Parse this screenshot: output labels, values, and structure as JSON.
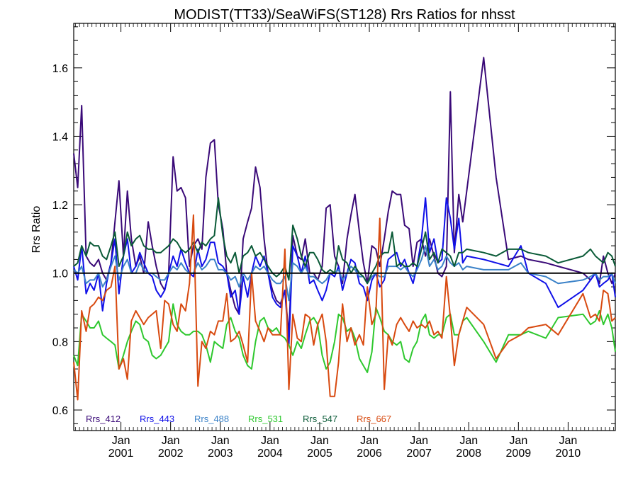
{
  "chart_data": {
    "type": "line",
    "title": "MODIST(TT33)/SeaWiFS(ST128)  Rrs Ratios for nhsst",
    "xlabel": "",
    "ylabel": "Rrs Ratio",
    "ylim": [
      0.54,
      1.73
    ],
    "xlim": [
      2000.05,
      2010.95
    ],
    "grid": false,
    "legend_position": "bottom-left",
    "reference_line": 1.0,
    "yticks": [
      0.6,
      0.8,
      1.0,
      1.2,
      1.4,
      1.6
    ],
    "yticklabels": [
      "0.6",
      "0.8",
      "1.0",
      "1.2",
      "1.4",
      "1.6"
    ],
    "xticks": [
      2001.0,
      2002.0,
      2003.0,
      2004.0,
      2005.0,
      2006.0,
      2007.0,
      2008.0,
      2009.0,
      2010.0
    ],
    "xticklabels_top": [
      "Jan",
      "Jan",
      "Jan",
      "Jan",
      "Jan",
      "Jan",
      "Jan",
      "Jan",
      "Jan",
      "Jan"
    ],
    "xticklabels_bottom": [
      "2001",
      "2002",
      "2003",
      "2004",
      "2005",
      "2006",
      "2007",
      "2008",
      "2009",
      "2010"
    ],
    "x": [
      2000.05,
      2000.13,
      2000.21,
      2000.3,
      2000.38,
      2000.46,
      2000.55,
      2000.63,
      2000.71,
      2000.8,
      2000.88,
      2000.96,
      2001.05,
      2001.13,
      2001.21,
      2001.3,
      2001.38,
      2001.46,
      2001.55,
      2001.63,
      2001.71,
      2001.8,
      2001.88,
      2001.96,
      2002.05,
      2002.13,
      2002.21,
      2002.3,
      2002.38,
      2002.46,
      2002.55,
      2002.63,
      2002.71,
      2002.8,
      2002.88,
      2002.96,
      2003.05,
      2003.13,
      2003.21,
      2003.3,
      2003.38,
      2003.46,
      2003.55,
      2003.63,
      2003.71,
      2003.8,
      2003.88,
      2003.96,
      2004.05,
      2004.13,
      2004.21,
      2004.3,
      2004.38,
      2004.46,
      2004.55,
      2004.63,
      2004.71,
      2004.8,
      2004.88,
      2004.96,
      2005.05,
      2005.13,
      2005.21,
      2005.3,
      2005.38,
      2005.46,
      2005.55,
      2005.63,
      2005.71,
      2005.8,
      2005.88,
      2005.96,
      2006.05,
      2006.13,
      2006.21,
      2006.3,
      2006.38,
      2006.46,
      2006.55,
      2006.63,
      2006.71,
      2006.8,
      2006.88,
      2006.96,
      2007.05,
      2007.13,
      2007.21,
      2007.3,
      2007.38,
      2007.46,
      2007.55,
      2007.63,
      2007.71,
      2007.8,
      2007.88,
      2007.96,
      2008.3,
      2008.55,
      2008.8,
      2009.05,
      2009.2,
      2009.55,
      2009.8,
      2010.3,
      2010.45,
      2010.55,
      2010.63,
      2010.71,
      2010.8,
      2010.88,
      2010.95
    ],
    "series": [
      {
        "name": "Rrs_412",
        "color": "#3a0a78",
        "values": [
          1.35,
          1.25,
          1.49,
          1.05,
          1.03,
          1.02,
          1.04,
          1.0,
          0.98,
          1.03,
          1.15,
          1.27,
          1.05,
          1.24,
          1.1,
          1.02,
          1.05,
          1.0,
          1.15,
          1.08,
          1.02,
          0.97,
          0.95,
          1.0,
          1.34,
          1.24,
          1.25,
          1.22,
          1.02,
          1.08,
          1.1,
          1.07,
          1.28,
          1.38,
          1.39,
          1.2,
          1.13,
          1.0,
          0.95,
          0.9,
          0.88,
          1.1,
          1.15,
          1.19,
          1.31,
          1.25,
          1.1,
          1.0,
          0.95,
          0.92,
          0.91,
          0.95,
          0.82,
          1.11,
          1.05,
          1.04,
          1.1,
          1.0,
          1.0,
          0.98,
          1.02,
          1.19,
          1.2,
          1.05,
          1.02,
          0.97,
          1.1,
          1.17,
          1.23,
          1.12,
          1.03,
          0.97,
          1.08,
          1.07,
          1.02,
          1.1,
          1.18,
          1.24,
          1.23,
          1.23,
          1.14,
          1.13,
          1.02,
          1.09,
          1.1,
          1.05,
          1.1,
          1.05,
          1.0,
          0.99,
          1.02,
          1.53,
          1.06,
          1.23,
          1.15,
          1.24,
          1.63,
          1.28,
          1.04,
          1.05,
          1.04,
          1.03,
          1.02,
          1.0,
          0.98,
          1.0,
          0.97,
          1.05,
          1.0,
          0.97,
          1.0
        ]
      },
      {
        "name": "Rrs_443",
        "color": "#1010e8",
        "values": [
          1.02,
          0.98,
          1.08,
          0.94,
          0.97,
          0.95,
          1.0,
          0.89,
          0.97,
          1.03,
          1.1,
          0.94,
          1.05,
          1.1,
          1.0,
          1.02,
          1.06,
          1.03,
          1.0,
          0.99,
          0.95,
          0.93,
          0.95,
          1.0,
          1.05,
          1.02,
          1.07,
          1.03,
          1.0,
          0.99,
          1.07,
          1.02,
          1.04,
          1.09,
          1.09,
          1.03,
          1.02,
          1.0,
          0.93,
          0.95,
          0.88,
          0.99,
          0.93,
          1.0,
          1.05,
          1.02,
          1.05,
          1.0,
          0.93,
          0.91,
          0.9,
          0.95,
          0.79,
          1.08,
          1.05,
          1.0,
          1.05,
          0.97,
          0.98,
          0.95,
          0.92,
          0.95,
          1.0,
          0.99,
          1.02,
          0.95,
          1.0,
          1.04,
          1.03,
          0.97,
          0.96,
          0.92,
          0.98,
          1.0,
          0.96,
          0.98,
          1.04,
          1.05,
          1.06,
          1.02,
          1.04,
          1.0,
          0.97,
          1.02,
          1.1,
          1.22,
          1.06,
          1.1,
          1.03,
          1.04,
          1.22,
          1.16,
          1.07,
          1.16,
          1.03,
          1.05,
          1.04,
          1.03,
          1.02,
          1.08,
          1.0,
          0.97,
          0.9,
          0.95,
          0.98,
          1.0,
          0.96,
          0.97,
          0.98,
          1.0,
          0.93
        ]
      },
      {
        "name": "Rrs_488",
        "color": "#3b82c8",
        "values": [
          1.01,
          1.0,
          1.02,
          0.97,
          0.98,
          0.98,
          1.0,
          0.96,
          0.98,
          1.02,
          1.05,
          0.98,
          1.02,
          1.04,
          1.0,
          1.0,
          1.03,
          1.01,
          1.0,
          1.0,
          0.99,
          0.98,
          0.98,
          1.0,
          1.02,
          1.01,
          1.03,
          1.01,
          1.0,
          1.0,
          1.03,
          1.01,
          1.02,
          1.04,
          1.04,
          1.01,
          1.01,
          1.0,
          0.98,
          0.99,
          0.96,
          1.0,
          0.98,
          1.0,
          1.02,
          1.01,
          1.02,
          1.0,
          0.98,
          0.97,
          0.97,
          0.99,
          0.92,
          1.03,
          1.02,
          1.0,
          1.02,
          0.99,
          0.99,
          0.98,
          0.97,
          0.98,
          1.0,
          1.0,
          1.01,
          0.98,
          1.0,
          1.02,
          1.01,
          0.99,
          0.99,
          0.97,
          0.99,
          1.0,
          0.99,
          0.99,
          1.02,
          1.02,
          1.02,
          1.01,
          1.02,
          1.0,
          0.99,
          1.01,
          1.04,
          1.08,
          1.02,
          1.04,
          1.01,
          1.02,
          1.05,
          1.03,
          1.02,
          1.03,
          1.01,
          1.02,
          1.01,
          1.01,
          1.01,
          1.03,
          1.0,
          0.99,
          0.97,
          0.98,
          0.99,
          1.0,
          0.98,
          0.99,
          0.99,
          1.0,
          0.97
        ]
      },
      {
        "name": "Rrs_531",
        "color": "#2ec82e",
        "values": [
          0.76,
          0.73,
          0.88,
          0.86,
          0.84,
          0.84,
          0.86,
          0.82,
          0.81,
          0.8,
          0.79,
          0.72,
          0.76,
          0.8,
          0.83,
          0.86,
          0.85,
          0.81,
          0.8,
          0.76,
          0.75,
          0.76,
          0.78,
          0.8,
          0.91,
          0.85,
          0.83,
          0.82,
          0.82,
          0.83,
          0.83,
          0.82,
          0.79,
          0.74,
          0.8,
          0.79,
          0.78,
          0.85,
          0.87,
          0.83,
          0.81,
          0.76,
          0.73,
          0.72,
          0.8,
          0.86,
          0.87,
          0.84,
          0.83,
          0.84,
          0.82,
          0.81,
          0.79,
          0.76,
          0.8,
          0.78,
          0.82,
          0.86,
          0.87,
          0.85,
          0.76,
          0.72,
          0.74,
          0.8,
          0.88,
          0.87,
          0.83,
          0.84,
          0.81,
          0.75,
          0.73,
          0.71,
          0.77,
          0.9,
          0.87,
          0.83,
          0.82,
          0.8,
          0.79,
          0.8,
          0.75,
          0.74,
          0.78,
          0.8,
          0.86,
          0.88,
          0.82,
          0.81,
          0.82,
          0.82,
          0.87,
          0.88,
          0.82,
          0.82,
          0.86,
          0.87,
          0.8,
          0.74,
          0.82,
          0.82,
          0.83,
          0.81,
          0.87,
          0.88,
          0.85,
          0.86,
          0.89,
          0.85,
          0.88,
          0.84,
          0.77
        ]
      },
      {
        "name": "Rrs_547",
        "color": "#0a5a37",
        "values": [
          1.02,
          1.03,
          1.08,
          1.05,
          1.09,
          1.08,
          1.08,
          1.05,
          1.04,
          1.08,
          1.12,
          1.02,
          1.05,
          1.12,
          1.08,
          1.1,
          1.11,
          1.08,
          1.07,
          1.07,
          1.06,
          1.06,
          1.07,
          1.08,
          1.1,
          1.09,
          1.07,
          1.06,
          1.07,
          1.09,
          1.06,
          1.09,
          1.08,
          1.1,
          1.11,
          1.22,
          1.11,
          1.05,
          1.03,
          1.06,
          1.0,
          1.05,
          1.06,
          1.08,
          1.05,
          1.06,
          1.04,
          1.02,
          1.0,
          0.99,
          1.0,
          1.02,
          0.98,
          1.14,
          1.1,
          1.05,
          1.02,
          1.06,
          1.06,
          1.04,
          1.01,
          1.0,
          1.01,
          1.0,
          1.08,
          1.04,
          1.03,
          1.0,
          1.02,
          1.0,
          0.99,
          0.97,
          1.0,
          1.02,
          1.05,
          1.06,
          1.06,
          1.12,
          1.02,
          1.03,
          1.02,
          1.02,
          1.03,
          1.02,
          1.07,
          1.12,
          1.04,
          1.06,
          1.03,
          1.07,
          1.06,
          1.05,
          1.02,
          1.06,
          1.06,
          1.07,
          1.06,
          1.05,
          1.07,
          1.07,
          1.06,
          1.05,
          1.03,
          1.05,
          1.07,
          1.05,
          1.04,
          1.03,
          1.06,
          1.05,
          1.02
        ]
      },
      {
        "name": "Rrs_667",
        "color": "#d84a10",
        "values": [
          0.74,
          0.63,
          0.89,
          0.83,
          0.9,
          0.91,
          0.93,
          0.92,
          0.95,
          0.96,
          1.02,
          0.72,
          0.75,
          0.69,
          0.86,
          0.89,
          0.87,
          0.85,
          0.87,
          0.88,
          0.89,
          0.78,
          0.92,
          0.91,
          0.85,
          0.83,
          0.91,
          0.89,
          0.97,
          1.17,
          0.67,
          0.8,
          0.78,
          0.83,
          0.82,
          0.86,
          0.86,
          0.94,
          0.8,
          0.81,
          0.83,
          0.79,
          0.74,
          1.0,
          0.86,
          0.83,
          0.8,
          0.84,
          0.82,
          0.82,
          0.82,
          1.07,
          0.66,
          0.88,
          0.81,
          0.8,
          0.88,
          0.87,
          0.79,
          0.85,
          0.88,
          0.8,
          0.64,
          0.64,
          0.74,
          0.91,
          0.8,
          0.84,
          0.79,
          0.82,
          0.79,
          0.96,
          0.85,
          0.88,
          1.16,
          0.66,
          0.82,
          0.79,
          0.85,
          0.87,
          0.85,
          0.83,
          0.86,
          0.84,
          0.85,
          0.84,
          0.86,
          0.82,
          0.83,
          0.81,
          0.99,
          0.87,
          0.73,
          0.82,
          0.86,
          0.9,
          0.85,
          0.75,
          0.8,
          0.82,
          0.84,
          0.85,
          0.82,
          0.94,
          0.87,
          0.88,
          0.86,
          0.95,
          0.94,
          0.86,
          0.87
        ]
      }
    ]
  }
}
